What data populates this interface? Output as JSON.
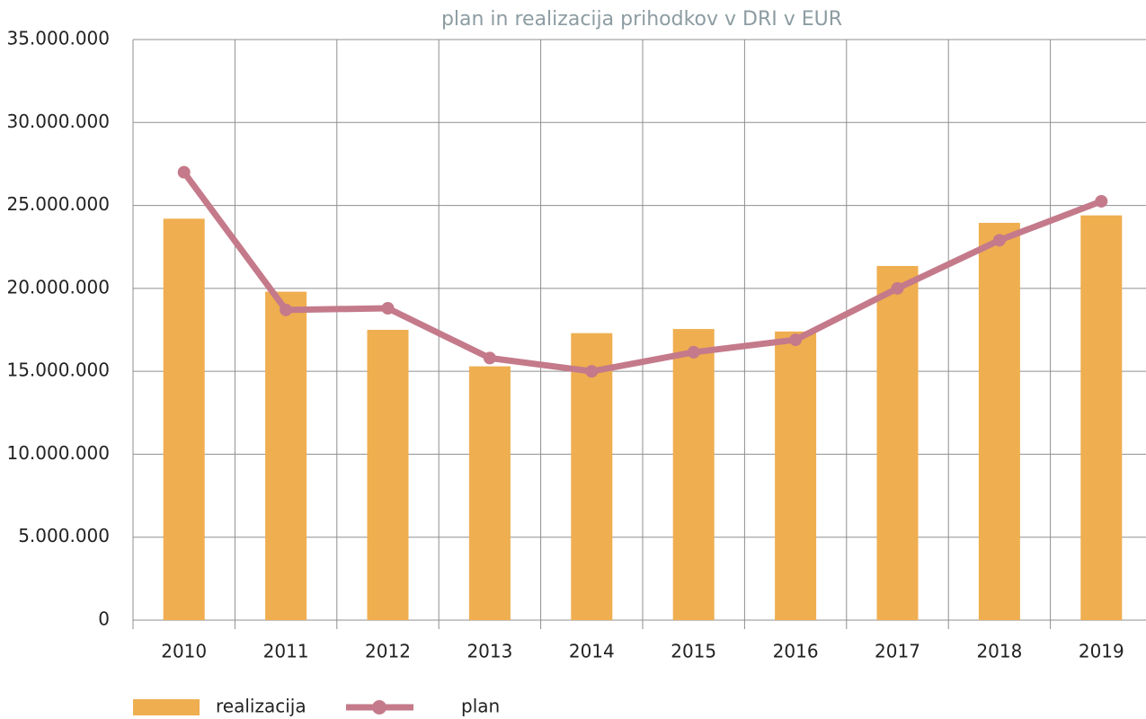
{
  "chart_data": {
    "type": "bar_line",
    "title": "plan in realizacija prihodkov v DRI v EUR",
    "categories": [
      "2010",
      "2011",
      "2012",
      "2013",
      "2014",
      "2015",
      "2016",
      "2017",
      "2018",
      "2019"
    ],
    "series": [
      {
        "name": "realizacija",
        "type": "bar",
        "color": "#efae50",
        "values": [
          24200000,
          19800000,
          17500000,
          15300000,
          17300000,
          17550000,
          17400000,
          21350000,
          23950000,
          24400000
        ]
      },
      {
        "name": "plan",
        "type": "line",
        "color": "#c47a8a",
        "values": [
          27000000,
          18700000,
          18800000,
          15800000,
          15000000,
          16150000,
          16900000,
          20000000,
          22900000,
          25250000
        ]
      }
    ],
    "ylim": [
      0,
      35000000
    ],
    "yticks": [
      0,
      {
        "value": 5000000,
        "label": "5.000.000"
      },
      {
        "value": 10000000,
        "label": "10.000.000"
      },
      {
        "value": 15000000,
        "label": "15.000.000"
      },
      {
        "value": 20000000,
        "label": "20.000.000"
      },
      {
        "value": 25000000,
        "label": "25.000.000"
      },
      {
        "value": 30000000,
        "label": "30.000.000"
      },
      {
        "value": 35000000,
        "label": "35.000.000"
      }
    ],
    "grid": true,
    "legend": "bottom"
  }
}
